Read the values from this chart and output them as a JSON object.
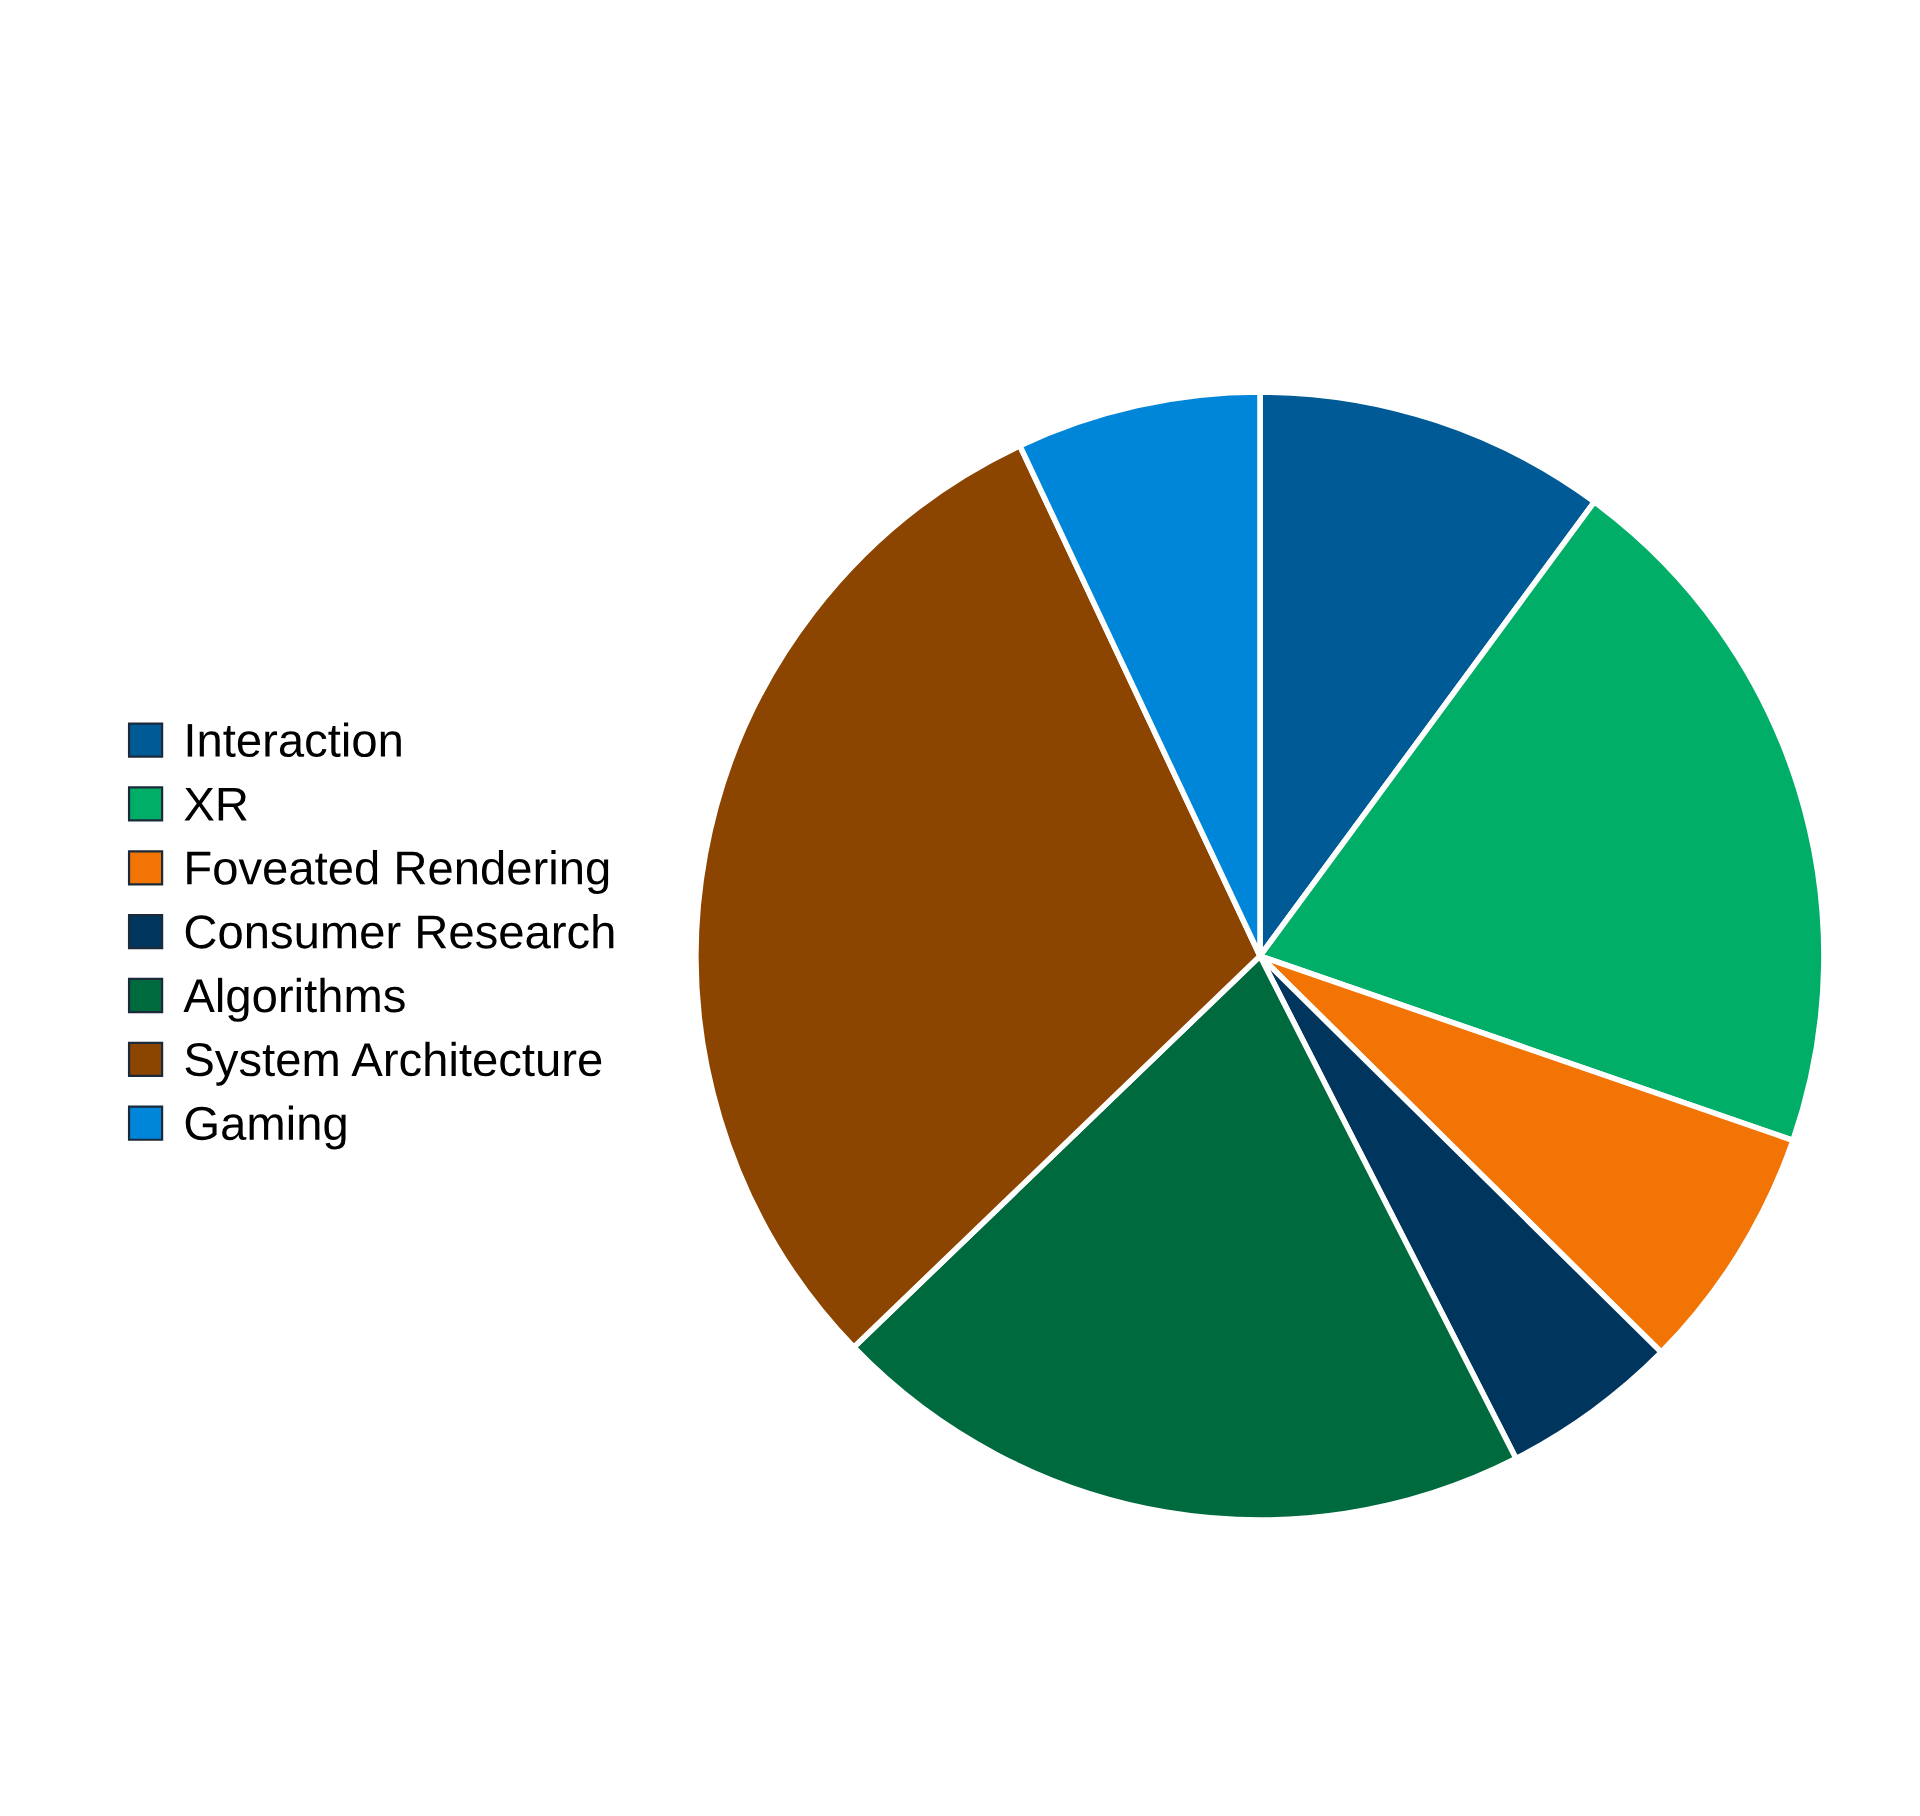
{
  "chart_data": {
    "type": "pie",
    "categories": [
      "Interaction",
      "XR",
      "Foveated Rendering",
      "Consumer Research",
      "Algorithms",
      "System Architecture",
      "Gaming"
    ],
    "values": [
      10.1,
      20.2,
      7.1,
      5.1,
      20.3,
      30.2,
      7.0
    ],
    "colors": [
      "#005a96",
      "#00ae68",
      "#f27405",
      "#00365e",
      "#006a3f",
      "#8b4500",
      "#0086d9"
    ],
    "legend": "left"
  }
}
